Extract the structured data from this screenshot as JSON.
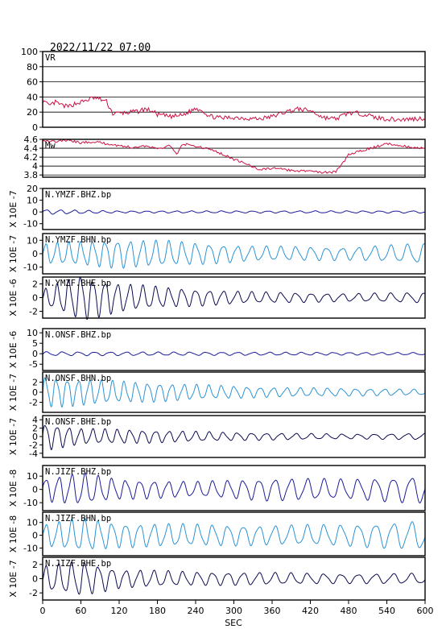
{
  "header": {
    "datetime": "2022/11/22 07:00"
  },
  "chart_data": {
    "type": "line",
    "xlabel": "SEC",
    "xlim": [
      0,
      600
    ],
    "xticks": [
      0,
      60,
      120,
      180,
      240,
      300,
      360,
      420,
      480,
      540,
      600
    ],
    "panels": [
      {
        "label": "VR",
        "ylabel": "",
        "ylim": [
          0,
          100
        ],
        "yticks": [
          0,
          20,
          40,
          60,
          80,
          100
        ],
        "grid": true,
        "color": "#cc1144",
        "kind": "step",
        "points": [
          [
            0,
            35
          ],
          [
            10,
            28
          ],
          [
            20,
            33
          ],
          [
            30,
            29
          ],
          [
            40,
            27
          ],
          [
            50,
            31
          ],
          [
            60,
            33
          ],
          [
            70,
            36
          ],
          [
            80,
            39
          ],
          [
            90,
            37
          ],
          [
            100,
            34
          ],
          [
            110,
            18
          ],
          [
            130,
            19
          ],
          [
            150,
            21
          ],
          [
            160,
            24
          ],
          [
            170,
            22
          ],
          [
            180,
            17
          ],
          [
            200,
            14
          ],
          [
            220,
            16
          ],
          [
            240,
            25
          ],
          [
            250,
            23
          ],
          [
            260,
            15
          ],
          [
            280,
            12
          ],
          [
            300,
            13
          ],
          [
            320,
            12
          ],
          [
            340,
            11
          ],
          [
            360,
            14
          ],
          [
            380,
            20
          ],
          [
            400,
            24
          ],
          [
            420,
            22
          ],
          [
            440,
            13
          ],
          [
            460,
            11
          ],
          [
            480,
            19
          ],
          [
            500,
            18
          ],
          [
            510,
            16
          ],
          [
            520,
            13
          ],
          [
            540,
            11
          ],
          [
            560,
            10
          ],
          [
            580,
            11
          ],
          [
            600,
            12
          ]
        ]
      },
      {
        "label": "Mw",
        "ylabel": "",
        "ylim": [
          3.75,
          4.6
        ],
        "yticks": [
          3.8,
          4.0,
          4.2,
          4.4,
          4.6
        ],
        "ytick_labels": [
          "3.8",
          "4",
          "4.2",
          "4.4",
          "4.6"
        ],
        "grid": true,
        "color": "#cc1144",
        "kind": "step",
        "points": [
          [
            0,
            4.58
          ],
          [
            20,
            4.55
          ],
          [
            40,
            4.58
          ],
          [
            60,
            4.52
          ],
          [
            80,
            4.55
          ],
          [
            100,
            4.5
          ],
          [
            120,
            4.46
          ],
          [
            140,
            4.42
          ],
          [
            160,
            4.45
          ],
          [
            180,
            4.38
          ],
          [
            200,
            4.47
          ],
          [
            210,
            4.25
          ],
          [
            220,
            4.5
          ],
          [
            240,
            4.45
          ],
          [
            260,
            4.38
          ],
          [
            280,
            4.28
          ],
          [
            300,
            4.15
          ],
          [
            320,
            4.05
          ],
          [
            340,
            3.92
          ],
          [
            360,
            3.95
          ],
          [
            380,
            3.92
          ],
          [
            400,
            3.88
          ],
          [
            420,
            3.9
          ],
          [
            440,
            3.85
          ],
          [
            460,
            3.87
          ],
          [
            470,
            4.05
          ],
          [
            480,
            4.25
          ],
          [
            500,
            4.35
          ],
          [
            520,
            4.42
          ],
          [
            540,
            4.5
          ],
          [
            560,
            4.47
          ],
          [
            580,
            4.42
          ],
          [
            600,
            4.4
          ]
        ]
      },
      {
        "label": "N.YMZF.BHZ.bp",
        "ylabel": "X 10E -7",
        "ylim": [
          -15,
          20
        ],
        "yticks": [
          -10,
          0,
          10,
          20
        ],
        "color": "#1a1a9a",
        "amp": [
          [
            0,
            2.2
          ],
          [
            120,
            0.9
          ],
          [
            600,
            1.0
          ]
        ],
        "period": [
          [
            0,
            22
          ],
          [
            600,
            24
          ]
        ]
      },
      {
        "label": "N.YMZF.BHN.bp",
        "ylabel": "X 10E -7",
        "ylim": [
          -15,
          15
        ],
        "yticks": [
          -10,
          0,
          10
        ],
        "color": "#2a93d5",
        "amp": [
          [
            0,
            8
          ],
          [
            120,
            11
          ],
          [
            200,
            10
          ],
          [
            320,
            6
          ],
          [
            480,
            5
          ],
          [
            600,
            8
          ]
        ],
        "period": [
          [
            0,
            18
          ],
          [
            600,
            22
          ]
        ]
      },
      {
        "label": "N.YMZF.BHE.bp",
        "ylabel": "X 10E -6",
        "ylim": [
          -3,
          3
        ],
        "yticks": [
          -2,
          0,
          2
        ],
        "color": "#0a0a50",
        "amp": [
          [
            0,
            1.2
          ],
          [
            60,
            3.5
          ],
          [
            120,
            2.2
          ],
          [
            200,
            1.5
          ],
          [
            320,
            0.9
          ],
          [
            480,
            0.6
          ],
          [
            600,
            0.8
          ]
        ],
        "period": [
          [
            0,
            18
          ],
          [
            600,
            22
          ]
        ]
      },
      {
        "label": "N.ONSF.BHZ.bp",
        "ylabel": "X 10E -6",
        "ylim": [
          -8,
          12
        ],
        "yticks": [
          -5,
          0,
          5,
          10
        ],
        "color": "#1a1a9a",
        "amp": [
          [
            0,
            1.0
          ],
          [
            600,
            0.6
          ]
        ],
        "period": [
          [
            0,
            25
          ],
          [
            600,
            25
          ]
        ]
      },
      {
        "label": "N.ONSF.BHN.bp",
        "ylabel": "X 10E -7",
        "ylim": [
          -4,
          4
        ],
        "yticks": [
          -2,
          0,
          2
        ],
        "color": "#2a93d5",
        "amp": [
          [
            0,
            3.2
          ],
          [
            120,
            2.3
          ],
          [
            240,
            1.6
          ],
          [
            360,
            1.0
          ],
          [
            480,
            0.8
          ],
          [
            600,
            0.6
          ]
        ],
        "period": [
          [
            0,
            17
          ],
          [
            600,
            20
          ]
        ]
      },
      {
        "label": "N.ONSF.BHE.bp",
        "ylabel": "X 10E -7",
        "ylim": [
          -5,
          5
        ],
        "yticks": [
          -4,
          -2,
          0,
          2,
          4
        ],
        "color": "#0a0a50",
        "amp": [
          [
            0,
            3.5
          ],
          [
            60,
            2.0
          ],
          [
            120,
            1.8
          ],
          [
            300,
            1.0
          ],
          [
            480,
            0.6
          ],
          [
            600,
            0.8
          ]
        ],
        "period": [
          [
            0,
            18
          ],
          [
            600,
            22
          ]
        ]
      },
      {
        "label": "N.JIZF.BHZ.bp",
        "ylabel": "X 10E -8",
        "ylim": [
          -16,
          18
        ],
        "yticks": [
          -10,
          0,
          10
        ],
        "color": "#1a1a9a",
        "amp": [
          [
            0,
            9
          ],
          [
            60,
            13
          ],
          [
            120,
            8
          ],
          [
            240,
            6
          ],
          [
            360,
            9
          ],
          [
            480,
            8
          ],
          [
            600,
            11
          ]
        ],
        "period": [
          [
            0,
            20
          ],
          [
            600,
            24
          ]
        ]
      },
      {
        "label": "N.JIZF.BHN.bp",
        "ylabel": "X 10E -8",
        "ylim": [
          -16,
          18
        ],
        "yticks": [
          -10,
          0,
          10
        ],
        "color": "#2a93d5",
        "amp": [
          [
            0,
            9
          ],
          [
            60,
            14
          ],
          [
            120,
            10
          ],
          [
            240,
            9
          ],
          [
            360,
            8
          ],
          [
            480,
            9
          ],
          [
            600,
            12
          ]
        ],
        "period": [
          [
            0,
            20
          ],
          [
            600,
            24
          ]
        ]
      },
      {
        "label": "N.JIZF.BHE.bp",
        "ylabel": "X 10E -7",
        "ylim": [
          -3,
          3
        ],
        "yticks": [
          -2,
          0,
          2
        ],
        "color": "#0a0a50",
        "amp": [
          [
            0,
            1.8
          ],
          [
            60,
            2.6
          ],
          [
            120,
            1.4
          ],
          [
            240,
            1.0
          ],
          [
            360,
            0.9
          ],
          [
            480,
            0.7
          ],
          [
            600,
            0.8
          ]
        ],
        "period": [
          [
            0,
            20
          ],
          [
            600,
            24
          ]
        ]
      }
    ]
  }
}
